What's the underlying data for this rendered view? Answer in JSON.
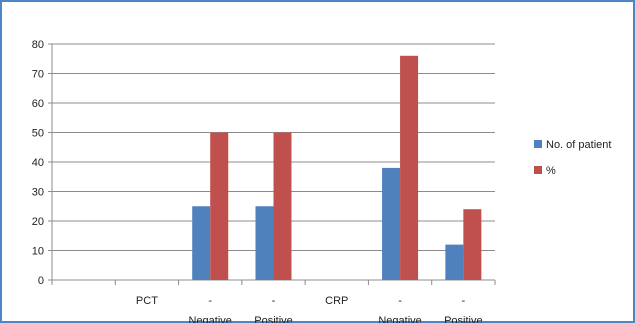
{
  "chart_data": {
    "type": "bar",
    "categories": [
      "",
      "PCT",
      "- Negative",
      "- Positive",
      "CRP",
      "- Negative",
      "- Positive"
    ],
    "category_lines": [
      [
        ""
      ],
      [
        "PCT"
      ],
      [
        "-",
        "Negative"
      ],
      [
        "-",
        "Positive"
      ],
      [
        "CRP"
      ],
      [
        "-",
        "Negative"
      ],
      [
        "-",
        "Positive"
      ]
    ],
    "series": [
      {
        "name": "No. of patient",
        "values": [
          null,
          null,
          25,
          25,
          null,
          38,
          12
        ],
        "color": "#4f81bd"
      },
      {
        "name": "%",
        "values": [
          null,
          null,
          50,
          50,
          null,
          76,
          24
        ],
        "color": "#c0504d"
      }
    ],
    "ylim": [
      0,
      80
    ],
    "yticks": [
      0,
      10,
      20,
      30,
      40,
      50,
      60,
      70,
      80
    ],
    "grid": true,
    "legend_position": "right",
    "title": "",
    "xlabel": "",
    "ylabel": ""
  }
}
